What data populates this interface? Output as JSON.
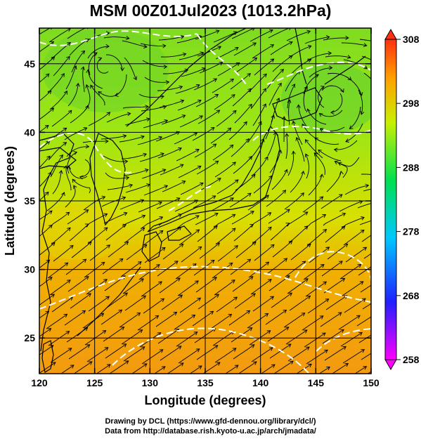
{
  "title": "MSM 00Z01Jul2023 (1013.2hPa)",
  "xaxis": {
    "label": "Longitude (degrees)",
    "range": [
      120,
      150
    ],
    "ticks": [
      "120",
      "125",
      "130",
      "135",
      "140",
      "145",
      "150"
    ]
  },
  "yaxis": {
    "label": "Latitude (degrees)",
    "range": [
      22.4,
      47.6
    ],
    "ticks": [
      "25",
      "30",
      "35",
      "40",
      "45"
    ]
  },
  "colorbar": {
    "ticks": [
      "258",
      "268",
      "278",
      "288",
      "298",
      "308"
    ],
    "range": [
      258,
      308
    ],
    "colors": [
      "#ff00ff",
      "#0000ff",
      "#00c8ff",
      "#00e050",
      "#c8f000",
      "#ffa000",
      "#ff3010"
    ]
  },
  "credits": {
    "line1": "Drawing by DCL (https://www.gfd-dennou.org/library/dcl/)",
    "line2": "Data from http://database.rish.kyoto-u.ac.jp/arch/jmadata/"
  },
  "colors": {
    "contour": "#ffffff",
    "coast": "#000000",
    "stream": "#000000"
  },
  "overlays": {
    "contour_lines": "white dashed isobars",
    "coastlines": "East Asia coastline",
    "streamlines": "surface wind streamlines"
  }
}
